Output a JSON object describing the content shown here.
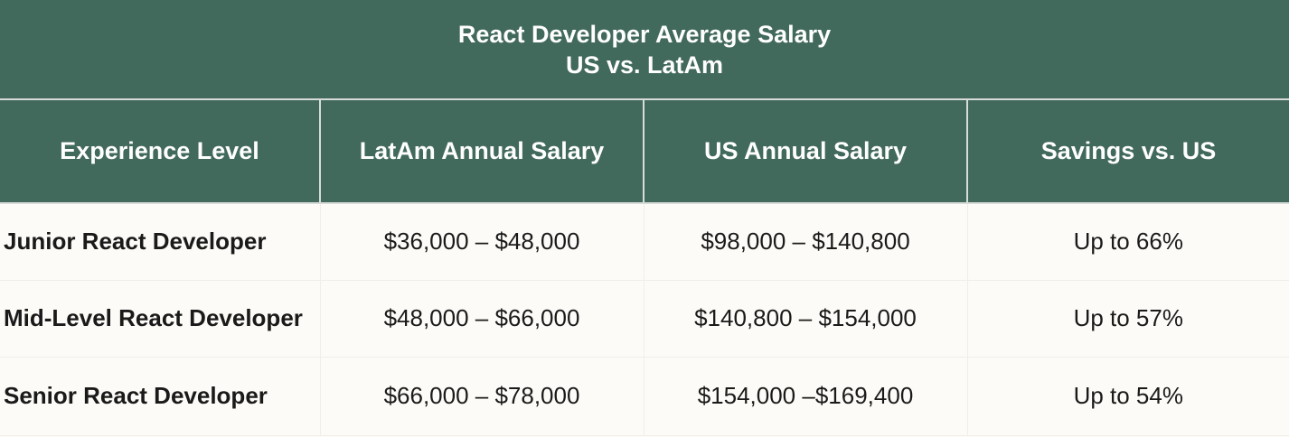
{
  "title": {
    "line1": "React Developer Average Salary",
    "line2": "US vs. LatAm"
  },
  "columns": [
    "Experience Level",
    "LatAm Annual Salary",
    "US Annual Salary",
    "Savings vs. US"
  ],
  "rows": [
    {
      "level": "Junior React Developer",
      "latam": "$36,000 – $48,000",
      "us": "$98,000 – $140,800",
      "savings": "Up to 66%"
    },
    {
      "level": "Mid-Level React Developer",
      "latam": "$48,000 – $66,000",
      "us": "$140,800 – $154,000",
      "savings": "Up to 57%"
    },
    {
      "level": "Senior React Developer",
      "latam": "$66,000 – $78,000",
      "us": "$154,000 –$169,400",
      "savings": "Up to 54%"
    }
  ],
  "colors": {
    "header_bg": "#41695c",
    "header_text": "#ffffff",
    "body_bg": "#fdfbf7",
    "body_text": "#1a1a1a"
  }
}
